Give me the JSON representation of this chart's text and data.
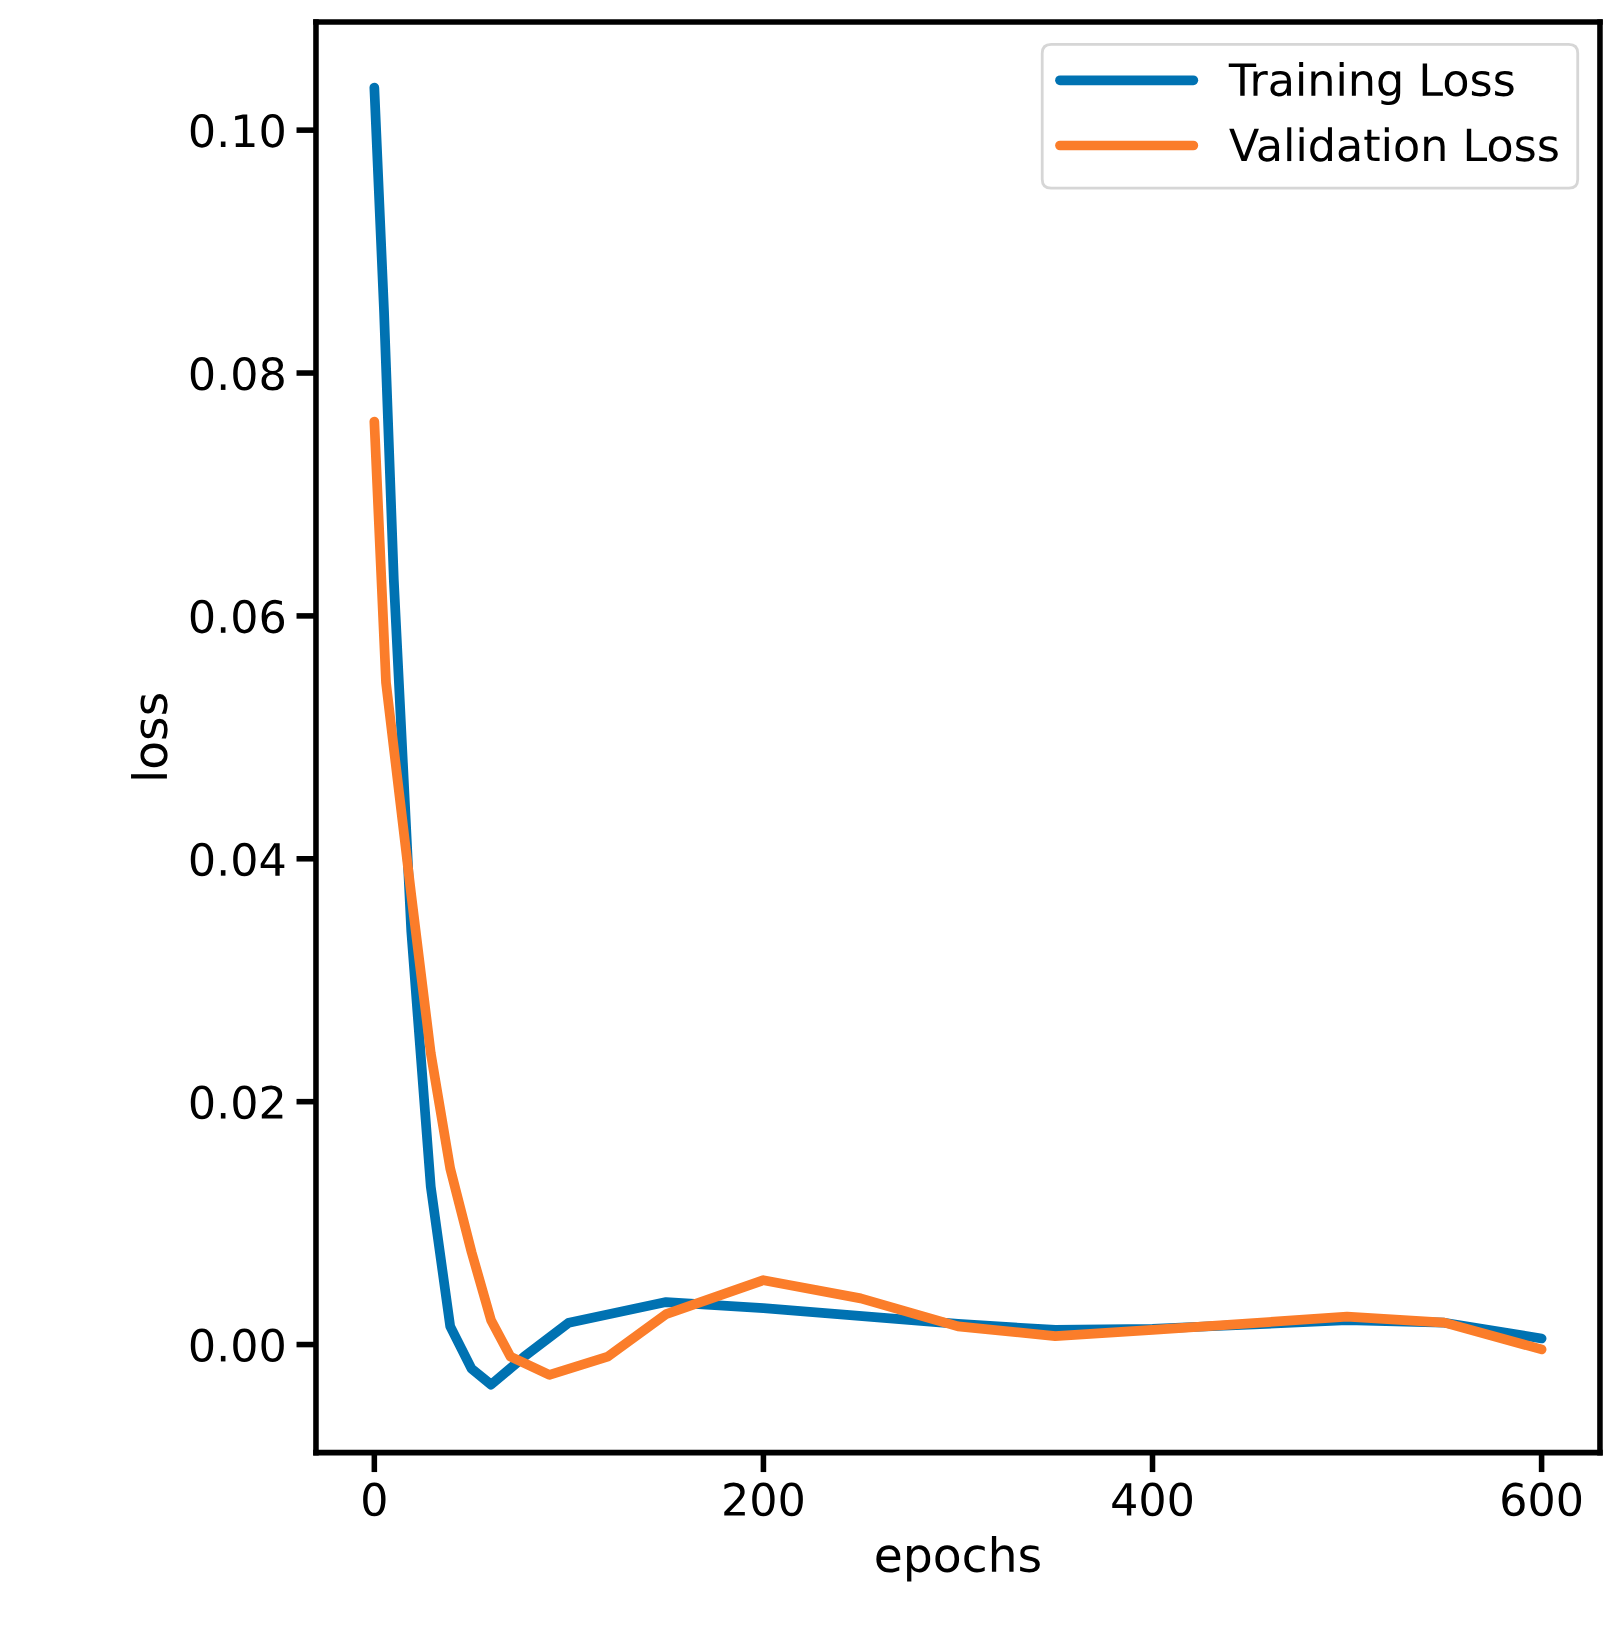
{
  "chart_data": {
    "type": "line",
    "xlabel": "epochs",
    "ylabel": "loss",
    "xlim": [
      -30,
      630
    ],
    "xticks": [
      0,
      200,
      400,
      600
    ],
    "ylim": [
      -0.0089,
      0.1089
    ],
    "yticks": [
      {
        "value": 0,
        "label": "0.00"
      },
      {
        "value": 0.02,
        "label": "0.02"
      },
      {
        "value": 0.04,
        "label": "0.04"
      },
      {
        "value": 0.06,
        "label": "0.06"
      },
      {
        "value": 0.08,
        "label": "0.08"
      },
      {
        "value": 0.1,
        "label": "0.10"
      }
    ],
    "grid": false,
    "legend": "top right",
    "line_style": "solid",
    "marker": "none",
    "series": [
      {
        "name": "Training Loss",
        "color": "#0072b2",
        "x": [
          0,
          5,
          10,
          19,
          29,
          39,
          50,
          60,
          77,
          100,
          150,
          200,
          300,
          350,
          400,
          500,
          550,
          600
        ],
        "values": [
          0.1035,
          0.085,
          0.063,
          0.034,
          0.013,
          0.0015,
          -0.002,
          -0.0033,
          -0.001,
          0.0018,
          0.0035,
          0.003,
          0.0017,
          0.0012,
          0.0013,
          0.002,
          0.0018,
          0.0005
        ]
      },
      {
        "name": "Validation Loss",
        "color": "#fb7d2a",
        "x": [
          0,
          6,
          19,
          29,
          39,
          50,
          60,
          70,
          90,
          120,
          150,
          200,
          250,
          300,
          350,
          400,
          500,
          550,
          600
        ],
        "values": [
          0.076,
          0.0545,
          0.037,
          0.024,
          0.0145,
          0.0076,
          0.002,
          -0.001,
          -0.0025,
          -0.001,
          0.0025,
          0.0053,
          0.0038,
          0.0015,
          0.0007,
          0.0012,
          0.0023,
          0.0018,
          -0.0004
        ]
      }
    ]
  }
}
